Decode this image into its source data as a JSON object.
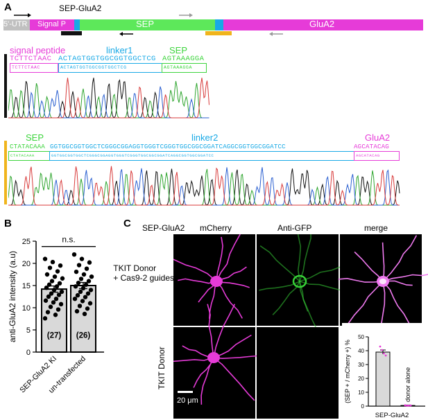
{
  "panel_a": {
    "letter": "A",
    "construct_name": "SEP-GluA2",
    "segments": {
      "utr": "5'-UTR",
      "signal": "Signal P",
      "sep": "SEP",
      "glua2": "GluA2"
    },
    "colors": {
      "utr": "#c0c0c0",
      "signal": "#e63bd8",
      "linker": "#18a9e6",
      "sep": "#5de85a",
      "glua2": "#e63bd8"
    },
    "seq1": {
      "signal_label": "signal peptide",
      "linker_label": "linker1",
      "sep_label": "SEP",
      "signal_seq": "TCTTCTAAC",
      "linker_seq": "ACTAGTGGTGGCGGTGGCTCG",
      "sep_seq": "AGTAAAGGA"
    },
    "seq2": {
      "sep_label": "SEP",
      "linker_label": "linker2",
      "glua2_label": "GluA2",
      "sep_seq": "CTATACAAA",
      "linker_seq": "GGTGGCGGTGGCTCGGGCGGAGGTGGGTCGGGTGGCGGCGGATCAGGCGGTGGCGGATCC",
      "glua2_seq": "AGCATACAG"
    }
  },
  "panel_b": {
    "letter": "B",
    "ylabel": "anti-GluA2 intensity (a.u)",
    "significance": "n.s.",
    "chart_data": {
      "type": "bar",
      "categories": [
        "SEP-GluA2 KI",
        "un-transfected"
      ],
      "values": [
        14.2,
        15.0
      ],
      "sem": [
        0.7,
        0.7
      ],
      "n_labels": [
        "(27)",
        "(26)"
      ],
      "ylim": [
        0,
        25
      ],
      "yticks": [
        "0",
        "5",
        "10",
        "15",
        "20",
        "25"
      ],
      "bar_color": "#d9d9d9",
      "points": [
        [
          21.0,
          20.3,
          19.5,
          19.0,
          18.2,
          17.5,
          17.0,
          16.6,
          16.0,
          15.5,
          15.2,
          14.8,
          14.5,
          14.0,
          13.6,
          13.2,
          12.9,
          12.5,
          12.0,
          11.6,
          11.2,
          10.8,
          10.2,
          9.6,
          9.0,
          8.4,
          7.6
        ],
        [
          22.0,
          21.0,
          20.2,
          19.6,
          18.8,
          18.1,
          17.5,
          17.0,
          16.5,
          16.0,
          15.6,
          15.2,
          14.8,
          14.4,
          14.0,
          13.6,
          13.2,
          12.8,
          12.4,
          12.0,
          11.5,
          11.0,
          10.4,
          9.8,
          9.2,
          8.6
        ]
      ]
    }
  },
  "panel_c": {
    "letter": "C",
    "construct": "SEP-GluA2",
    "columns": [
      "mCherry",
      "Anti-GFP",
      "merge"
    ],
    "column_colors": [
      "#e63bd8",
      "#3cd43c",
      "#000000"
    ],
    "row1_label_a": "TKIT Donor",
    "row1_label_b": "+ Cas9-2 guides",
    "row2_label": "TKIT Donor",
    "scalebar": "20 μm",
    "chart_data": {
      "type": "bar",
      "categories": [
        "SEP-GluA2",
        "donor alone"
      ],
      "values": [
        39,
        0.5
      ],
      "sem": [
        1.5,
        0.3
      ],
      "ylim": [
        0,
        50
      ],
      "yticks": [
        "0",
        "10",
        "20",
        "30",
        "40",
        "50"
      ],
      "ylabel": "(SEP + / mCherry +) %",
      "xlabel": "SEP-GluA2",
      "bar_color": "#d9d9d9",
      "points": [
        [
          43,
          40.5,
          38,
          36.5
        ],
        [
          0.6,
          0.3,
          0.4,
          0.5
        ]
      ]
    }
  }
}
